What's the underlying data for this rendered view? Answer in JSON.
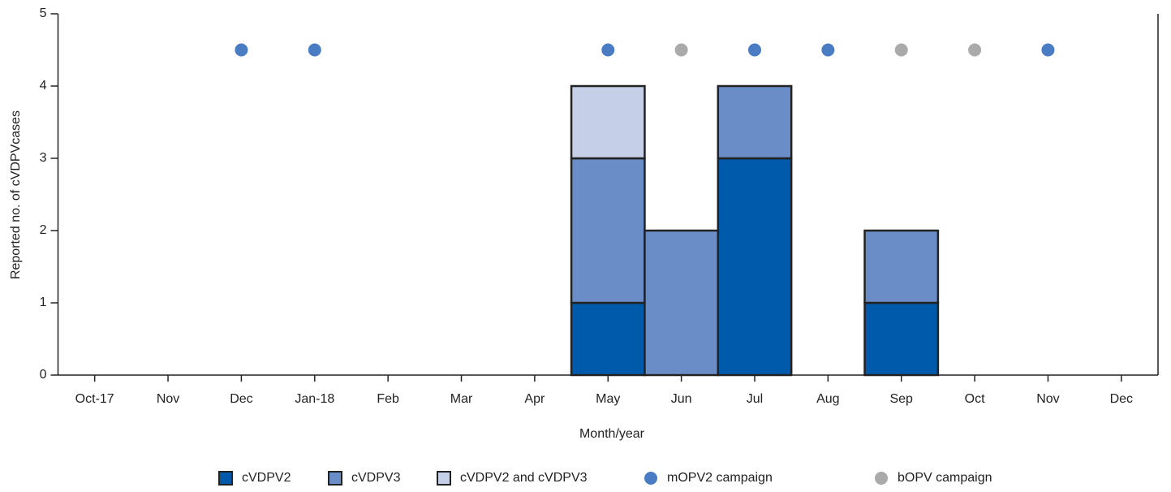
{
  "chart_data": {
    "type": "bar",
    "stacked": true,
    "xlabel": "Month/year",
    "ylabel": "Reported no. of cVDPVcases",
    "categories": [
      "Oct-17",
      "Nov",
      "Dec",
      "Jan-18",
      "Feb",
      "Mar",
      "Apr",
      "May",
      "Jun",
      "Jul",
      "Aug",
      "Sep",
      "Oct",
      "Nov",
      "Dec"
    ],
    "series": [
      {
        "name": "cVDPV2",
        "type": "bar",
        "color": "#005aab",
        "values": [
          0,
          0,
          0,
          0,
          0,
          0,
          0,
          1,
          0,
          3,
          0,
          1,
          0,
          0,
          0
        ]
      },
      {
        "name": "cVDPV3",
        "type": "bar",
        "color": "#6a8cc7",
        "values": [
          0,
          0,
          0,
          0,
          0,
          0,
          0,
          2,
          2,
          1,
          0,
          1,
          0,
          0,
          0
        ]
      },
      {
        "name": "cVDPV2 and cVDPV3",
        "type": "bar",
        "color": "#c5d0e8",
        "values": [
          0,
          0,
          0,
          0,
          0,
          0,
          0,
          1,
          0,
          0,
          0,
          0,
          0,
          0,
          0
        ]
      },
      {
        "name": "mOPV2 campaign",
        "type": "scatter",
        "color": "#4a7cc4",
        "values": [
          null,
          null,
          4.5,
          4.5,
          null,
          null,
          null,
          4.5,
          null,
          4.5,
          4.5,
          null,
          null,
          4.5,
          null
        ]
      },
      {
        "name": "bOPV campaign",
        "type": "scatter",
        "color": "#aaaaaa",
        "values": [
          null,
          null,
          null,
          null,
          null,
          null,
          null,
          null,
          4.5,
          null,
          null,
          4.5,
          4.5,
          null,
          null
        ]
      }
    ],
    "ylim": [
      0,
      5
    ],
    "yticks": [
      0,
      1,
      2,
      3,
      4,
      5
    ],
    "grid": false
  }
}
